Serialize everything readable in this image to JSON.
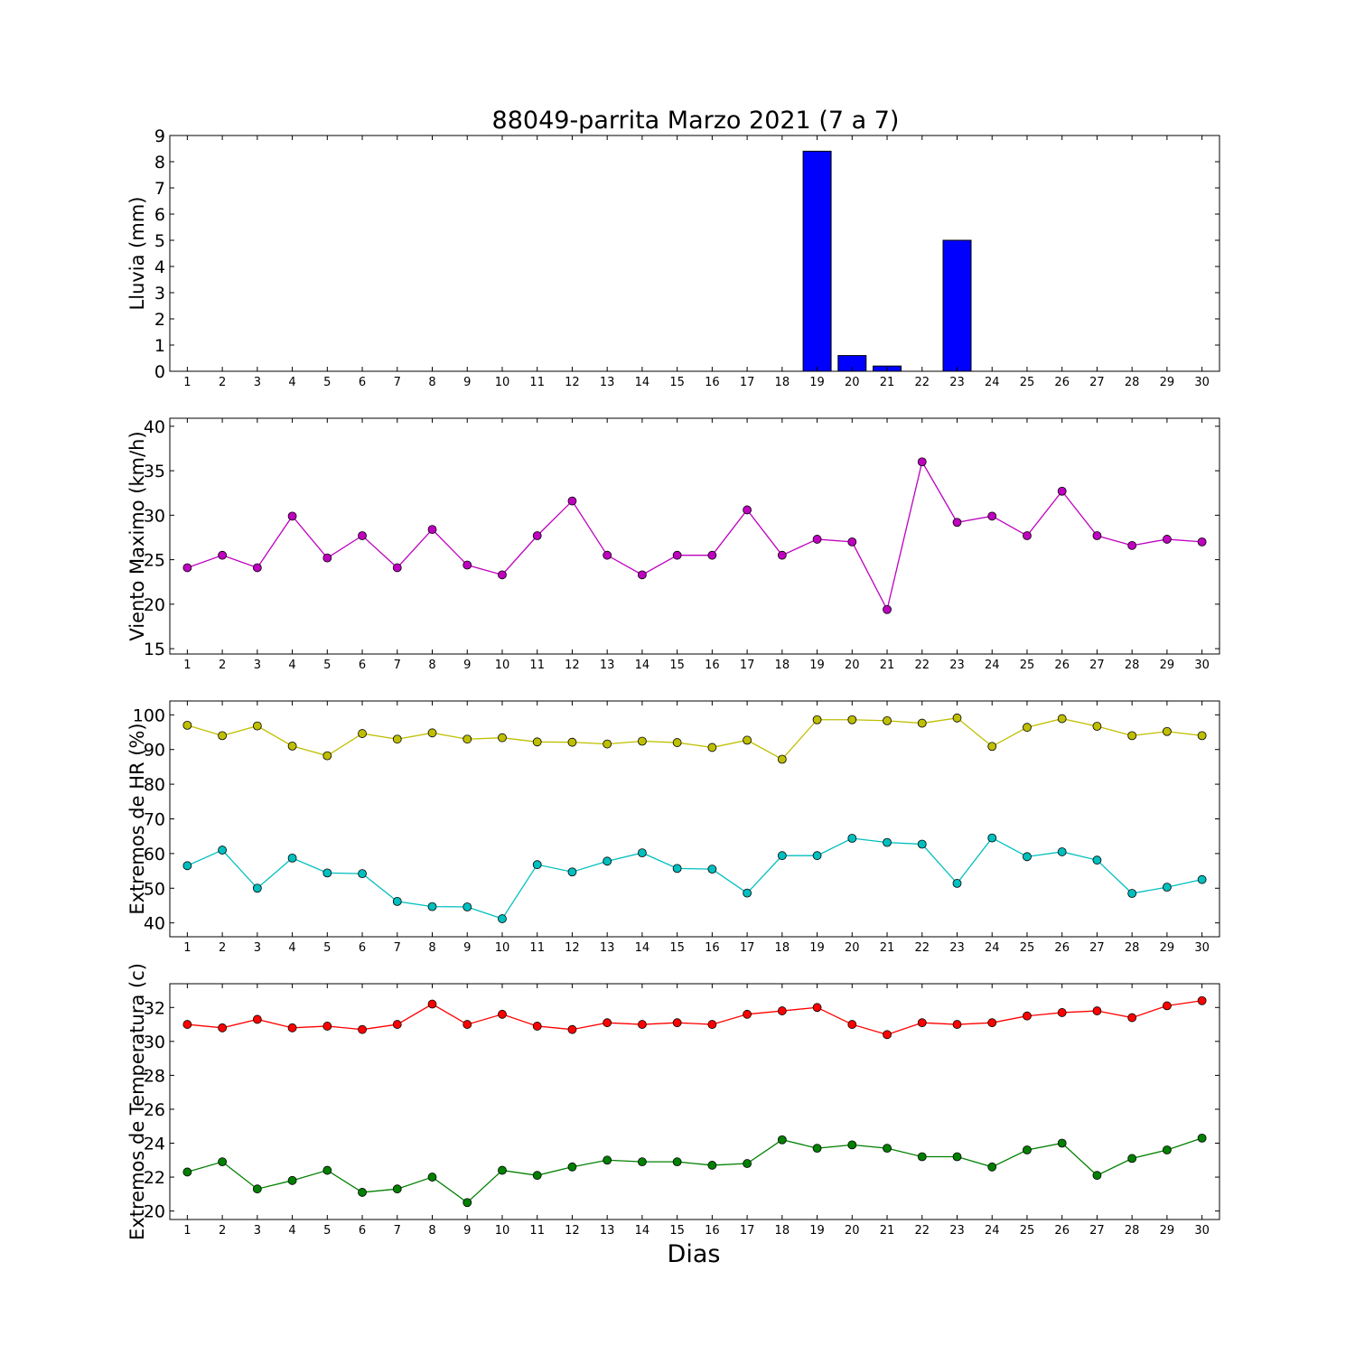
{
  "title": "88049-parrita Marzo 2021  (7 a 7)",
  "xlabel": "Dias",
  "chart_data": [
    {
      "type": "bar",
      "ylabel": "Lluvia (mm)",
      "ylim": [
        0,
        9
      ],
      "yticks": [
        0,
        1,
        2,
        3,
        4,
        5,
        6,
        7,
        8,
        9
      ],
      "x": [
        1,
        2,
        3,
        4,
        5,
        6,
        7,
        8,
        9,
        10,
        11,
        12,
        13,
        14,
        15,
        16,
        17,
        18,
        19,
        20,
        21,
        22,
        23,
        24,
        25,
        26,
        27,
        28,
        29,
        30
      ],
      "series": [
        {
          "color": "#0000ff",
          "values": [
            0,
            0,
            0,
            0,
            0,
            0,
            0,
            0,
            0,
            0,
            0,
            0,
            0,
            0,
            0,
            0,
            0,
            0,
            8.4,
            0.6,
            0.2,
            0,
            5.0,
            0,
            0,
            0,
            0,
            0,
            0,
            0
          ]
        }
      ]
    },
    {
      "type": "line",
      "ylabel": "Viento Maximo (km/h)",
      "ylim": [
        14.4,
        40.9
      ],
      "yticks": [
        15,
        20,
        25,
        30,
        35,
        40
      ],
      "x": [
        1,
        2,
        3,
        4,
        5,
        6,
        7,
        8,
        9,
        10,
        11,
        12,
        13,
        14,
        15,
        16,
        17,
        18,
        19,
        20,
        21,
        22,
        23,
        24,
        25,
        26,
        27,
        28,
        29,
        30
      ],
      "series": [
        {
          "color": "#bf00bf",
          "values": [
            24.1,
            25.5,
            24.1,
            29.9,
            25.2,
            27.7,
            24.1,
            28.4,
            24.4,
            23.3,
            27.7,
            31.6,
            25.5,
            23.3,
            25.5,
            25.5,
            30.6,
            25.5,
            27.3,
            27.0,
            19.4,
            36.0,
            29.2,
            29.9,
            27.7,
            32.7,
            27.7,
            26.6,
            27.3,
            27.0
          ]
        }
      ]
    },
    {
      "type": "line",
      "ylabel": "Extremos de HR (%)",
      "ylim": [
        36.0,
        104.0
      ],
      "yticks": [
        40,
        50,
        60,
        70,
        80,
        90,
        100
      ],
      "x": [
        1,
        2,
        3,
        4,
        5,
        6,
        7,
        8,
        9,
        10,
        11,
        12,
        13,
        14,
        15,
        16,
        17,
        18,
        19,
        20,
        21,
        22,
        23,
        24,
        25,
        26,
        27,
        28,
        29,
        30
      ],
      "series": [
        {
          "color": "#bfbf00",
          "values": [
            97.0,
            94.0,
            96.8,
            91.0,
            88.2,
            94.6,
            93.0,
            94.8,
            93.0,
            93.4,
            92.2,
            92.1,
            91.6,
            92.4,
            92.0,
            90.6,
            92.7,
            87.2,
            98.6,
            98.6,
            98.3,
            97.6,
            99.1,
            90.9,
            96.4,
            98.9,
            96.7,
            94.0,
            95.2,
            94.0
          ]
        },
        {
          "color": "#00bfbf",
          "values": [
            56.5,
            61.0,
            50.0,
            58.7,
            54.4,
            54.2,
            46.2,
            44.7,
            44.6,
            41.2,
            56.8,
            54.7,
            57.8,
            60.2,
            55.7,
            55.5,
            48.6,
            59.4,
            59.4,
            64.4,
            63.2,
            62.7,
            51.4,
            64.5,
            59.1,
            60.5,
            58.1,
            48.5,
            50.3,
            52.5
          ]
        }
      ]
    },
    {
      "type": "line",
      "ylabel": "Extremos de Temperatura (c)",
      "ylim": [
        19.5,
        33.4
      ],
      "yticks": [
        20,
        22,
        24,
        26,
        28,
        30,
        32
      ],
      "x": [
        1,
        2,
        3,
        4,
        5,
        6,
        7,
        8,
        9,
        10,
        11,
        12,
        13,
        14,
        15,
        16,
        17,
        18,
        19,
        20,
        21,
        22,
        23,
        24,
        25,
        26,
        27,
        28,
        29,
        30
      ],
      "series": [
        {
          "color": "#ff0000",
          "values": [
            31.0,
            30.8,
            31.3,
            30.8,
            30.9,
            30.7,
            31.0,
            32.2,
            31.0,
            31.6,
            30.9,
            30.7,
            31.1,
            31.0,
            31.1,
            31.0,
            31.6,
            31.8,
            32.0,
            31.0,
            30.4,
            31.1,
            31.0,
            31.1,
            31.5,
            31.7,
            31.8,
            31.4,
            32.1,
            32.4
          ]
        },
        {
          "color": "#008000",
          "values": [
            22.3,
            22.9,
            21.3,
            21.8,
            22.4,
            21.1,
            21.3,
            22.0,
            20.5,
            22.4,
            22.1,
            22.6,
            23.0,
            22.9,
            22.9,
            22.7,
            22.8,
            24.2,
            23.7,
            23.9,
            23.7,
            23.2,
            23.2,
            22.6,
            23.6,
            24.0,
            22.1,
            23.1,
            23.6,
            24.3
          ]
        }
      ]
    }
  ]
}
